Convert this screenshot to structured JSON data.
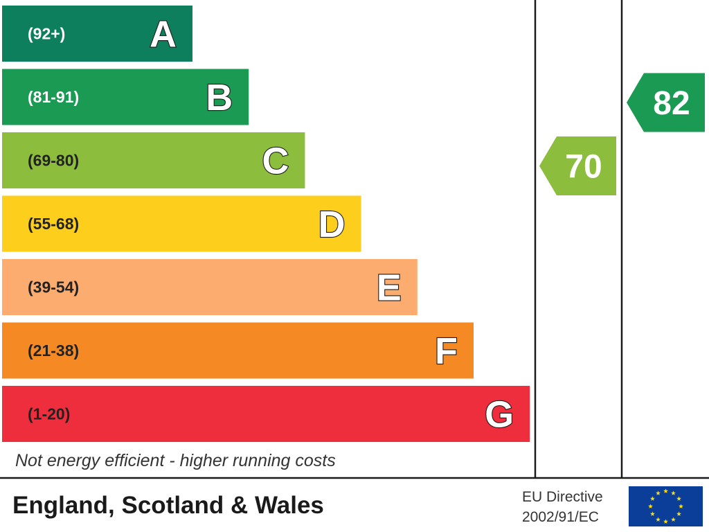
{
  "chart_data": {
    "type": "bar",
    "categories": [
      "A",
      "B",
      "C",
      "D",
      "E",
      "F",
      "G"
    ],
    "ranges": [
      "(92+)",
      "(81-91)",
      "(69-80)",
      "(55-68)",
      "(39-54)",
      "(21-38)",
      "(1-20)"
    ],
    "colors": [
      "#0e7f5c",
      "#1a9a52",
      "#8cbd3d",
      "#fece1c",
      "#fbac6e",
      "#f58a24",
      "#ee2e3d"
    ],
    "ratings": [
      {
        "value": "70",
        "band": "C",
        "color": "#8cbd3d"
      },
      {
        "value": "82",
        "band": "B",
        "color": "#1a9a52"
      }
    ]
  },
  "footer": {
    "note": "Not energy efficient - higher running costs",
    "region": "England, Scotland & Wales",
    "directive_line1": "EU Directive",
    "directive_line2": "2002/91/EC",
    "flag_icon": "eu-flag-icon",
    "flag_color": "#0b3e99",
    "star_color": "#ffdd00"
  }
}
